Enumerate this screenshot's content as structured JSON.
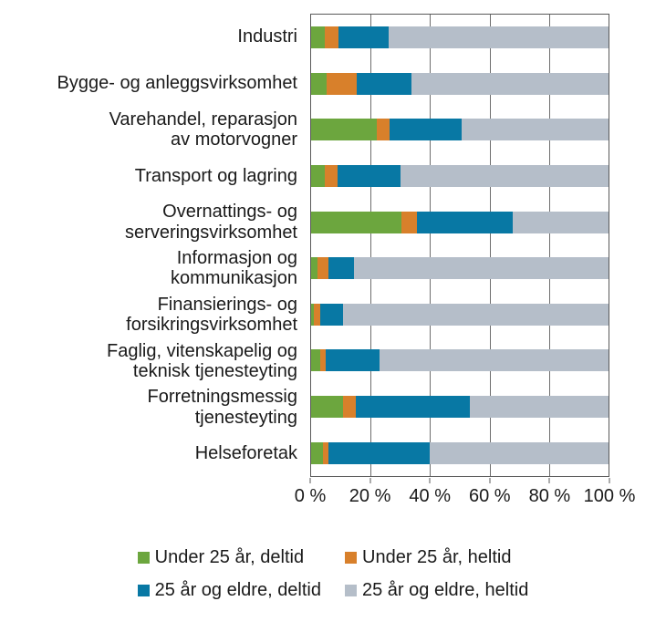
{
  "chart_data": {
    "type": "bar",
    "orientation": "horizontal",
    "stacked": true,
    "title": "",
    "xlabel": "",
    "ylabel": "",
    "xlim": [
      0,
      100
    ],
    "grid": true,
    "legend_position": "bottom",
    "x_ticks": [
      {
        "value": 0,
        "label": "0 %"
      },
      {
        "value": 20,
        "label": "20 %"
      },
      {
        "value": 40,
        "label": "40 %"
      },
      {
        "value": 60,
        "label": "60 %"
      },
      {
        "value": 80,
        "label": "80 %"
      },
      {
        "value": 100,
        "label": "100 %"
      }
    ],
    "categories": [
      "Industri",
      "Bygge- og anleggsvirksomhet",
      "Varehandel, reparasjon av motorvogner",
      "Transport og lagring",
      "Overnattings- og serveringsvirksomhet",
      "Informasjon og kommunikasjon",
      "Finansierings- og forsikringsvirksomhet",
      "Faglig, vitenskapelig og teknisk tjenesteyting",
      "Forretningsmessig tjenesteyting",
      "Helseforetak"
    ],
    "categories_display": [
      "Industri",
      "Bygge- og anleggsvirksomhet",
      "Varehandel, reparasjon\nav motorvogner",
      "Transport og lagring",
      "Overnattings- og\nserveringsvirksomhet",
      "Informasjon og\nkommunikasjon",
      "Finansierings- og\nforsikringsvirksomhet",
      "Faglig, vitenskapelig og\nteknisk tjenesteyting",
      "Forretningsmessig\ntjenesteyting",
      "Helseforetak"
    ],
    "series": [
      {
        "name": "Under 25 år, deltid",
        "color": "#6ca63e",
        "values": [
          4.6,
          5.3,
          22.0,
          4.6,
          30.3,
          2.3,
          1.0,
          3.1,
          10.8,
          4.1
        ]
      },
      {
        "name": "Under 25 år, heltid",
        "color": "#d8802b",
        "values": [
          4.6,
          10.1,
          4.4,
          4.4,
          5.4,
          3.6,
          2.1,
          1.8,
          4.1,
          1.8
        ]
      },
      {
        "name": "25 år og eldre, deltid",
        "color": "#0878a4",
        "values": [
          17.0,
          18.4,
          24.1,
          21.2,
          32.2,
          8.5,
          7.7,
          18.2,
          38.6,
          34.1
        ]
      },
      {
        "name": "25 år og eldre, heltid",
        "color": "#b5bec9",
        "values": [
          73.8,
          66.2,
          49.5,
          69.8,
          32.1,
          85.6,
          89.2,
          76.9,
          46.5,
          60.0
        ]
      }
    ],
    "style": {
      "plot_border_color": "#595959",
      "gridline_color": "#6e6e6e",
      "text_color": "#1a1a1a",
      "background": "#ffffff"
    }
  }
}
